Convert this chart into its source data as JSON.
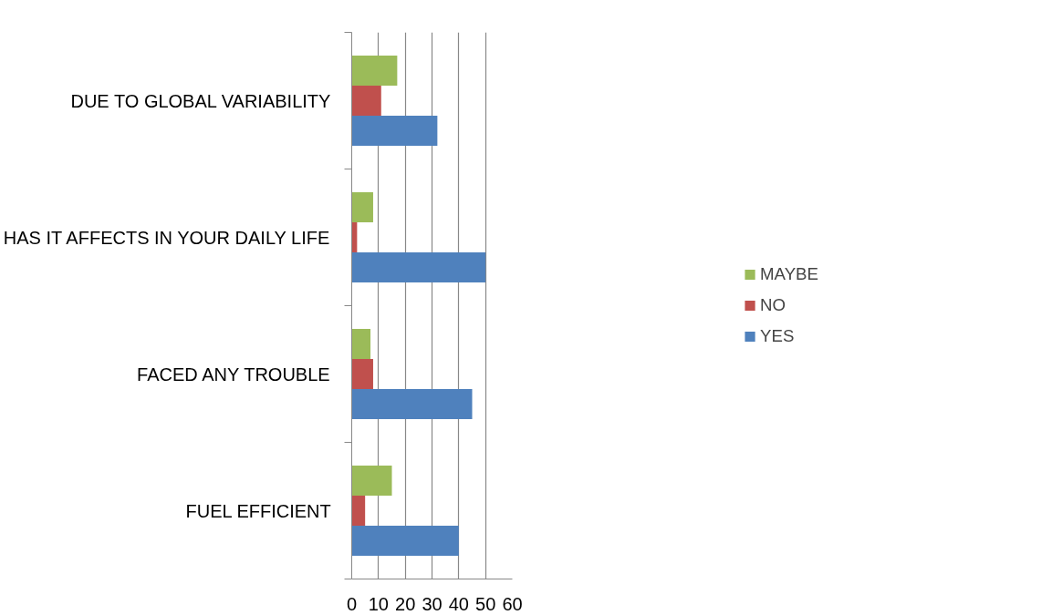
{
  "chart_data": {
    "type": "bar",
    "orientation": "horizontal",
    "categories": [
      "DUE TO GLOBAL VARIABILITY",
      "HAS IT AFFECTS IN YOUR DAILY LIFE",
      "FACED ANY TROUBLE",
      "FUEL EFFICIENT"
    ],
    "series": [
      {
        "name": "YES",
        "color": "#4f81bd",
        "values": [
          32,
          50,
          45,
          40
        ]
      },
      {
        "name": "NO",
        "color": "#c0504d",
        "values": [
          11,
          2,
          8,
          5
        ]
      },
      {
        "name": "MAYBE",
        "color": "#9bbb59",
        "values": [
          17,
          8,
          7,
          15
        ]
      }
    ],
    "xlim": [
      0,
      60
    ],
    "xticks": [
      0,
      10,
      20,
      30,
      40,
      50,
      60
    ],
    "grid": "x",
    "legend": "right"
  }
}
